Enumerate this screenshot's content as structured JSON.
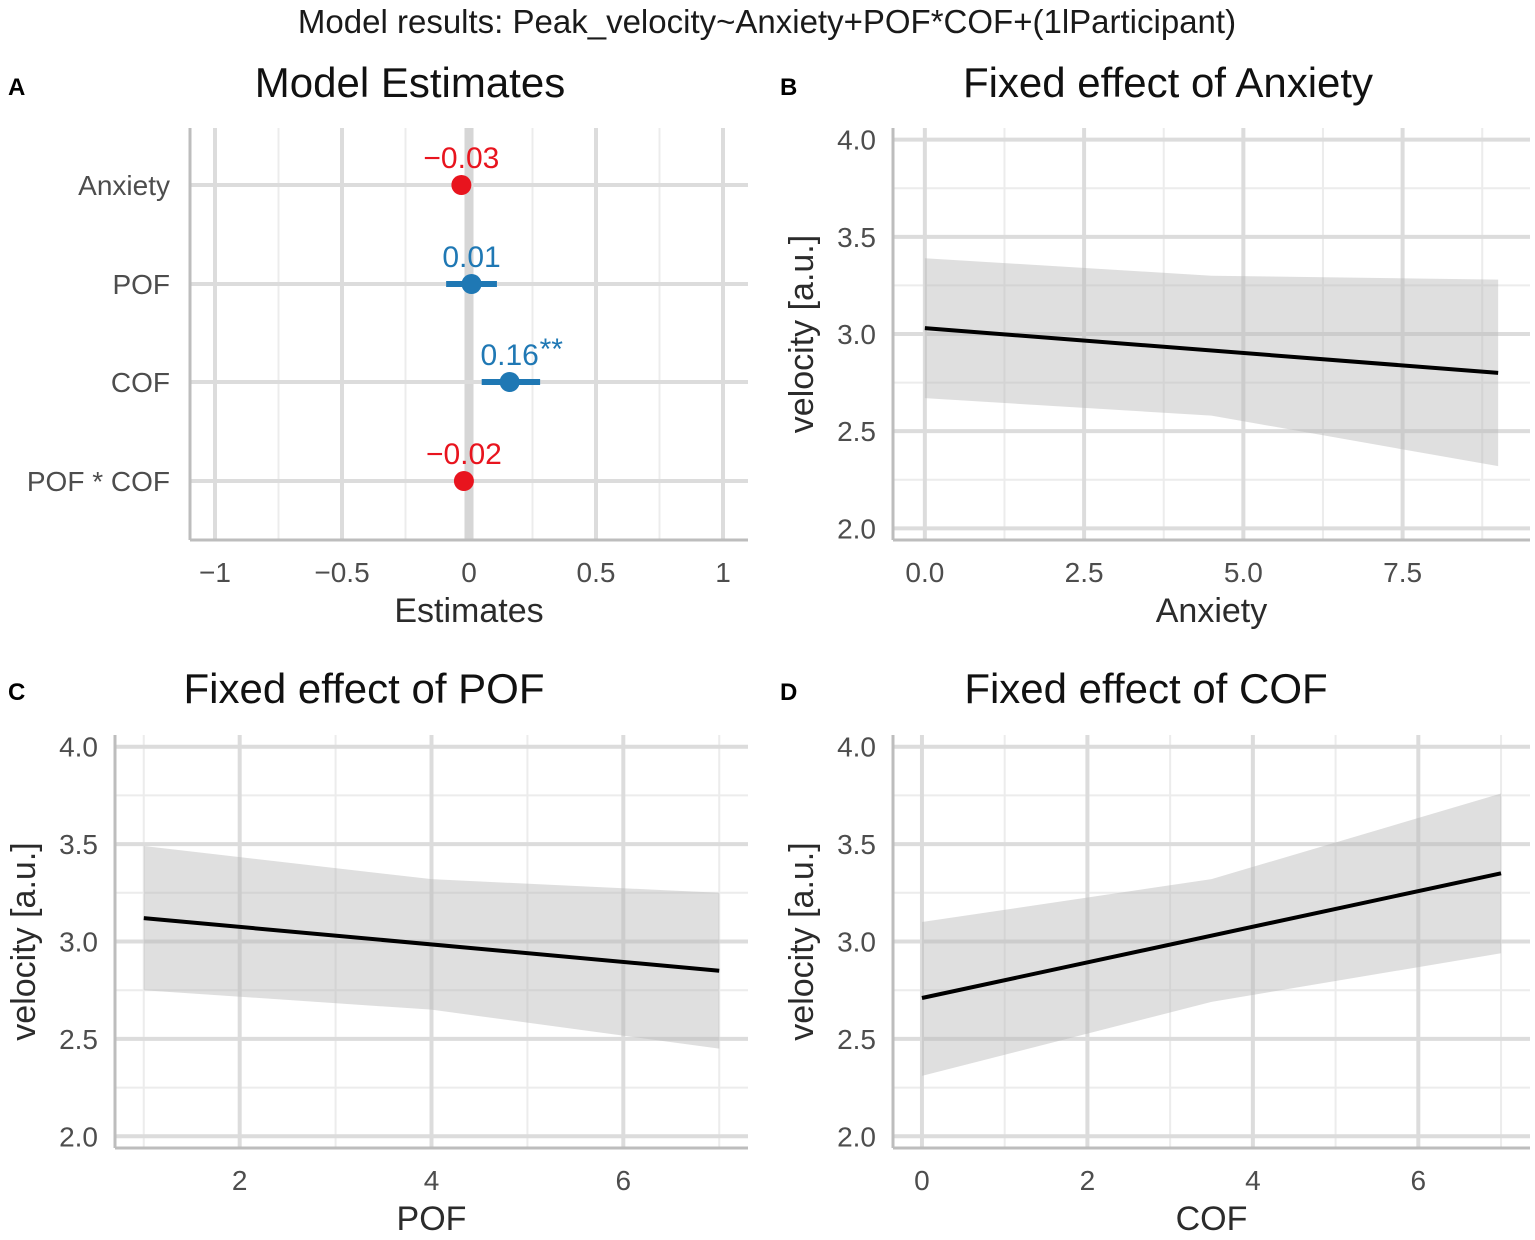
{
  "figure_title": "Model results: Peak_velocity~Anxiety+POF*COF+(1lParticipant)",
  "chart_data": [
    {
      "panel": "A",
      "type": "scatter",
      "subtype": "coefficient-plot",
      "title": "Model Estimates",
      "xlabel": "Estimates",
      "ylabel": "",
      "xlim": [
        -1,
        1
      ],
      "x_ticks": [
        -1,
        -0.5,
        0,
        0.5,
        1
      ],
      "x_tick_labels": [
        "−1",
        "−0.5",
        "0",
        "0.5",
        "1"
      ],
      "categories": [
        "Anxiety",
        "POF",
        "COF",
        "POF * COF"
      ],
      "estimates": [
        -0.03,
        0.01,
        0.16,
        -0.02
      ],
      "ci_low": [
        -0.055,
        -0.09,
        0.05,
        -0.04
      ],
      "ci_high": [
        0.005,
        0.11,
        0.28,
        0.0
      ],
      "labels": [
        "−0.03",
        "0.01",
        "0.16",
        "−0.02"
      ],
      "significance": [
        "",
        "",
        "**",
        ""
      ],
      "colors": {
        "negative": "#e8141e",
        "positive": "#1f78b4"
      }
    },
    {
      "panel": "B",
      "type": "line",
      "title": "Fixed effect of Anxiety",
      "xlabel": "Anxiety",
      "ylabel": "velocity [a.u.]",
      "xlim": [
        -0.5,
        9.5
      ],
      "ylim": [
        1.94,
        4.06
      ],
      "x_ticks": [
        0,
        2.5,
        5,
        7.5
      ],
      "x_tick_labels": [
        "0.0",
        "2.5",
        "5.0",
        "7.5"
      ],
      "y_ticks": [
        2,
        2.5,
        3,
        3.5,
        4
      ],
      "y_tick_labels": [
        "2.0",
        "2.5",
        "3.0",
        "3.5",
        "4.0"
      ],
      "x": [
        0,
        9
      ],
      "fit": [
        3.03,
        2.8
      ],
      "ci_upper": [
        [
          0,
          3.39
        ],
        [
          4.5,
          3.3
        ],
        [
          9,
          3.28
        ]
      ],
      "ci_lower": [
        [
          0,
          2.67
        ],
        [
          4.5,
          2.58
        ],
        [
          9,
          2.32
        ]
      ]
    },
    {
      "panel": "C",
      "type": "line",
      "title": "Fixed effect of POF",
      "xlabel": "POF",
      "ylabel": "velocity [a.u.]",
      "xlim": [
        0.7,
        7.3
      ],
      "ylim": [
        1.94,
        4.06
      ],
      "x_ticks": [
        2,
        4,
        6
      ],
      "x_tick_labels": [
        "2",
        "4",
        "6"
      ],
      "y_ticks": [
        2,
        2.5,
        3,
        3.5,
        4
      ],
      "y_tick_labels": [
        "2.0",
        "2.5",
        "3.0",
        "3.5",
        "4.0"
      ],
      "x": [
        1,
        7
      ],
      "fit": [
        3.12,
        2.85
      ],
      "ci_upper": [
        [
          1,
          3.49
        ],
        [
          4,
          3.32
        ],
        [
          7,
          3.25
        ]
      ],
      "ci_lower": [
        [
          1,
          2.75
        ],
        [
          4,
          2.65
        ],
        [
          7,
          2.45
        ]
      ]
    },
    {
      "panel": "D",
      "type": "line",
      "title": "Fixed effect of COF",
      "xlabel": "COF",
      "ylabel": "velocity [a.u.]",
      "xlim": [
        -0.35,
        7.35
      ],
      "ylim": [
        1.94,
        4.06
      ],
      "x_ticks": [
        0,
        2,
        4,
        6
      ],
      "x_tick_labels": [
        "0",
        "2",
        "4",
        "6"
      ],
      "y_ticks": [
        2,
        2.5,
        3,
        3.5,
        4
      ],
      "y_tick_labels": [
        "2.0",
        "2.5",
        "3.0",
        "3.5",
        "4.0"
      ],
      "x": [
        0,
        7
      ],
      "fit": [
        2.71,
        3.35
      ],
      "ci_upper": [
        [
          0,
          3.1
        ],
        [
          3.5,
          3.32
        ],
        [
          7,
          3.76
        ]
      ],
      "ci_lower": [
        [
          0,
          2.31
        ],
        [
          3.5,
          2.69
        ],
        [
          7,
          2.94
        ]
      ]
    }
  ]
}
